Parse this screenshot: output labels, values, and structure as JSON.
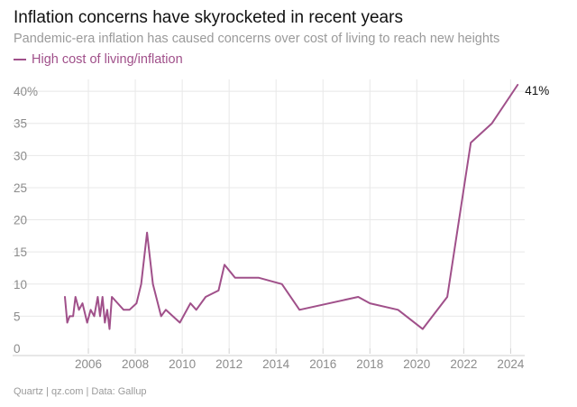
{
  "chart_data": {
    "type": "line",
    "title": "Inflation concerns have skyrocketed in recent years",
    "subtitle": "Pandemic-era inflation has caused concerns over cost of living to reach new heights",
    "source": "Quartz | qz.com | Data: Gallup",
    "xlabel": "",
    "ylabel": "",
    "xlim": [
      2004.0,
      2024.6
    ],
    "ylim": [
      0,
      41
    ],
    "x_ticks": [
      {
        "value": 2006,
        "label": "2006"
      },
      {
        "value": 2008,
        "label": "2008"
      },
      {
        "value": 2010,
        "label": "2010"
      },
      {
        "value": 2012,
        "label": "2012"
      },
      {
        "value": 2014,
        "label": "2014"
      },
      {
        "value": 2016,
        "label": "2016"
      },
      {
        "value": 2018,
        "label": "2018"
      },
      {
        "value": 2020,
        "label": "2020"
      },
      {
        "value": 2022,
        "label": "2022"
      },
      {
        "value": 2024,
        "label": "2024"
      }
    ],
    "y_ticks": [
      {
        "value": 0,
        "label": "0"
      },
      {
        "value": 5,
        "label": "5"
      },
      {
        "value": 10,
        "label": "10"
      },
      {
        "value": 15,
        "label": "15"
      },
      {
        "value": 20,
        "label": "20"
      },
      {
        "value": 25,
        "label": "25"
      },
      {
        "value": 30,
        "label": "30"
      },
      {
        "value": 35,
        "label": "35"
      },
      {
        "value": 40,
        "label": "40%"
      }
    ],
    "grid": true,
    "legend_position": "top-left",
    "end_label": "41%",
    "series": [
      {
        "name": "High cost of living/inflation",
        "color": "#a0508a",
        "points": [
          [
            2005.0,
            8
          ],
          [
            2005.1,
            4
          ],
          [
            2005.2,
            5
          ],
          [
            2005.35,
            5
          ],
          [
            2005.45,
            8
          ],
          [
            2005.6,
            6
          ],
          [
            2005.75,
            7
          ],
          [
            2005.95,
            4
          ],
          [
            2006.1,
            6
          ],
          [
            2006.25,
            5
          ],
          [
            2006.4,
            8
          ],
          [
            2006.5,
            5
          ],
          [
            2006.6,
            8
          ],
          [
            2006.7,
            4
          ],
          [
            2006.8,
            6
          ],
          [
            2006.9,
            3
          ],
          [
            2007.0,
            8
          ],
          [
            2007.5,
            6
          ],
          [
            2007.75,
            6
          ],
          [
            2008.05,
            7
          ],
          [
            2008.25,
            10
          ],
          [
            2008.5,
            18
          ],
          [
            2008.75,
            10
          ],
          [
            2009.1,
            5
          ],
          [
            2009.3,
            6
          ],
          [
            2009.9,
            4
          ],
          [
            2010.35,
            7
          ],
          [
            2010.6,
            6
          ],
          [
            2011.0,
            8
          ],
          [
            2011.55,
            9
          ],
          [
            2011.8,
            13
          ],
          [
            2012.25,
            11
          ],
          [
            2013.25,
            11
          ],
          [
            2014.25,
            10
          ],
          [
            2015.0,
            6
          ],
          [
            2017.5,
            8
          ],
          [
            2018.0,
            7
          ],
          [
            2019.2,
            6
          ],
          [
            2020.25,
            3
          ],
          [
            2021.3,
            8
          ],
          [
            2022.3,
            32
          ],
          [
            2023.2,
            35
          ],
          [
            2024.3,
            41
          ]
        ]
      }
    ]
  }
}
